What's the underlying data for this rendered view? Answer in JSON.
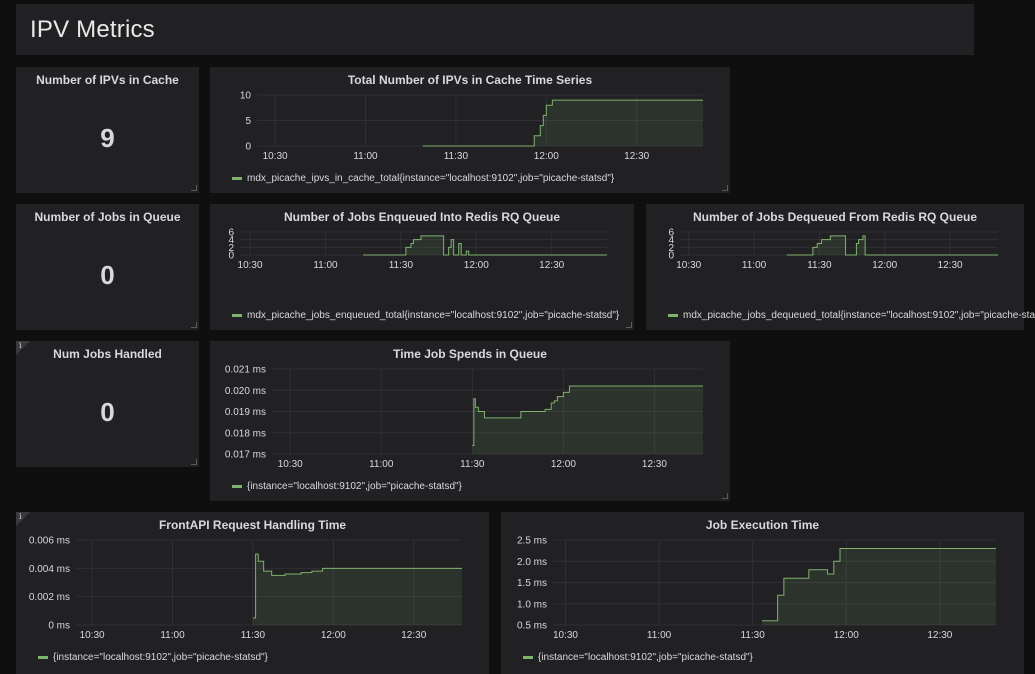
{
  "dashboard": {
    "title": "IPV Metrics"
  },
  "colors": {
    "series": "#7eb26d",
    "grid": "#303034",
    "panel_bg": "#212124",
    "page_bg": "#0f0f10"
  },
  "stats": {
    "ipvs_in_cache": {
      "title": "Number of IPVs in Cache",
      "value": "9"
    },
    "jobs_in_queue": {
      "title": "Number of Jobs in Queue",
      "value": "0"
    },
    "jobs_handled": {
      "title": "Num Jobs Handled",
      "value": "0",
      "info_icon": "i"
    }
  },
  "panels": {
    "ipvs_ts": {
      "title": "Total Number of IPVs in Cache Time Series",
      "legend": "mdx_picache_ipvs_in_cache_total{instance=\"localhost:9102\",job=\"picache-statsd\"}"
    },
    "enqueued": {
      "title": "Number of Jobs Enqueued Into Redis RQ Queue",
      "legend": "mdx_picache_jobs_enqueued_total{instance=\"localhost:9102\",job=\"picache-statsd\"}"
    },
    "dequeued": {
      "title": "Number of Jobs Dequeued From Redis RQ Queue",
      "legend": "mdx_picache_jobs_dequeued_total{instance=\"localhost:9102\",job=\"picache-sta"
    },
    "queue_time": {
      "title": "Time Job Spends in Queue",
      "legend": "{instance=\"localhost:9102\",job=\"picache-statsd\"}"
    },
    "frontapi": {
      "title": "FrontAPI Request Handling Time",
      "legend": "{instance=\"localhost:9102\",job=\"picache-statsd\"}",
      "info_icon": "i"
    },
    "exec_time": {
      "title": "Job Execution Time",
      "legend": "{instance=\"localhost:9102\",job=\"picache-statsd\"}"
    }
  },
  "chart_data": [
    {
      "id": "ipvs_ts",
      "type": "area",
      "x_ticks": [
        "10:30",
        "11:00",
        "11:30",
        "12:00",
        "12:30"
      ],
      "x_tick_values": [
        0,
        30,
        60,
        90,
        120
      ],
      "x_range": [
        -6,
        142
      ],
      "y_ticks": [
        "0",
        "5",
        "10"
      ],
      "y_tick_values": [
        0,
        5,
        10
      ],
      "ylim": [
        0,
        10
      ],
      "x": [
        49,
        62,
        70,
        84,
        86,
        88,
        89,
        90,
        92,
        100,
        110,
        120,
        130,
        142
      ],
      "y": [
        0,
        0,
        0,
        0,
        2,
        4,
        6,
        8,
        9,
        9,
        9,
        9,
        9,
        9
      ]
    },
    {
      "id": "enqueued",
      "type": "area",
      "x_ticks": [
        "10:30",
        "11:00",
        "11:30",
        "12:00",
        "12:30"
      ],
      "x_tick_values": [
        0,
        30,
        60,
        90,
        120
      ],
      "x_range": [
        -4,
        142
      ],
      "y_ticks": [
        "0",
        "2",
        "4",
        "6"
      ],
      "y_tick_values": [
        0,
        2,
        4,
        6
      ],
      "ylim": [
        0,
        6
      ],
      "x": [
        45,
        60,
        62,
        64,
        65,
        66,
        68,
        70,
        76,
        77,
        78,
        79,
        80,
        81,
        82,
        83,
        84,
        86,
        87,
        88,
        89,
        95,
        110,
        142
      ],
      "y": [
        0,
        0,
        2,
        3,
        4,
        4,
        5,
        5,
        5,
        0,
        0,
        2,
        4,
        0,
        0,
        3,
        0,
        1,
        0,
        0,
        0,
        0,
        0,
        0
      ]
    },
    {
      "id": "dequeued",
      "type": "area",
      "x_ticks": [
        "10:30",
        "11:00",
        "11:30",
        "12:00",
        "12:30"
      ],
      "x_tick_values": [
        0,
        30,
        60,
        90,
        120
      ],
      "x_range": [
        -4,
        142
      ],
      "y_ticks": [
        "0",
        "2",
        "4",
        "6"
      ],
      "y_tick_values": [
        0,
        2,
        4,
        6
      ],
      "ylim": [
        0,
        6
      ],
      "x": [
        45,
        55,
        57,
        59,
        61,
        63,
        65,
        70,
        71,
        72,
        76,
        77,
        78,
        80,
        81,
        82,
        83,
        95,
        110,
        142
      ],
      "y": [
        0,
        0,
        2,
        3,
        4,
        4,
        5,
        5,
        5,
        0,
        0,
        3,
        4,
        5,
        0,
        0,
        0,
        0,
        0,
        0
      ]
    },
    {
      "id": "queue_time",
      "type": "area",
      "unit": "ms",
      "x_ticks": [
        "10:30",
        "11:00",
        "11:30",
        "12:00",
        "12:30"
      ],
      "x_tick_values": [
        0,
        30,
        60,
        90,
        120
      ],
      "x_range": [
        -6,
        136
      ],
      "y_ticks": [
        "0.017 ms",
        "0.018 ms",
        "0.019 ms",
        "0.020 ms",
        "0.021 ms"
      ],
      "y_tick_values": [
        0.017,
        0.018,
        0.019,
        0.02,
        0.021
      ],
      "ylim": [
        0.017,
        0.021
      ],
      "x": [
        60,
        60.5,
        61,
        62,
        64,
        66,
        73,
        76,
        80,
        84,
        86,
        87,
        88,
        90,
        92,
        100,
        120,
        136
      ],
      "y": [
        0.0174,
        0.0196,
        0.0192,
        0.019,
        0.0187,
        0.0187,
        0.0187,
        0.019,
        0.019,
        0.0191,
        0.0194,
        0.0195,
        0.0197,
        0.0199,
        0.0202,
        0.0202,
        0.0202,
        0.0202
      ]
    },
    {
      "id": "frontapi",
      "type": "area",
      "unit": "ms",
      "x_ticks": [
        "10:30",
        "11:00",
        "11:30",
        "12:00",
        "12:30"
      ],
      "x_tick_values": [
        0,
        30,
        60,
        90,
        120
      ],
      "x_range": [
        -6,
        138
      ],
      "y_ticks": [
        "0 ms",
        "0.002 ms",
        "0.004 ms",
        "0.006 ms"
      ],
      "y_tick_values": [
        0,
        0.002,
        0.004,
        0.006
      ],
      "ylim": [
        0,
        0.006
      ],
      "x": [
        60,
        61,
        62,
        64,
        67,
        72,
        78,
        82,
        86,
        90,
        100,
        120,
        138
      ],
      "y": [
        0.0005,
        0.005,
        0.0045,
        0.0038,
        0.0035,
        0.0036,
        0.0037,
        0.0038,
        0.004,
        0.004,
        0.004,
        0.004,
        0.004
      ]
    },
    {
      "id": "exec_time",
      "type": "area",
      "unit": "ms",
      "x_ticks": [
        "10:30",
        "11:00",
        "11:30",
        "12:00",
        "12:30"
      ],
      "x_tick_values": [
        0,
        30,
        60,
        90,
        120
      ],
      "x_range": [
        -4,
        138
      ],
      "y_ticks": [
        "0.5 ms",
        "1.0 ms",
        "1.5 ms",
        "2.0 ms",
        "2.5 ms"
      ],
      "y_tick_values": [
        0.5,
        1.0,
        1.5,
        2.0,
        2.5
      ],
      "ylim": [
        0.5,
        2.5
      ],
      "x": [
        63,
        66,
        68,
        70,
        72,
        78,
        80,
        84,
        86,
        88,
        90,
        92,
        100,
        120,
        138
      ],
      "y": [
        0.6,
        0.6,
        1.2,
        1.6,
        1.6,
        1.8,
        1.8,
        1.7,
        2.0,
        2.3,
        2.3,
        2.3,
        2.3,
        2.3,
        2.3
      ]
    }
  ]
}
